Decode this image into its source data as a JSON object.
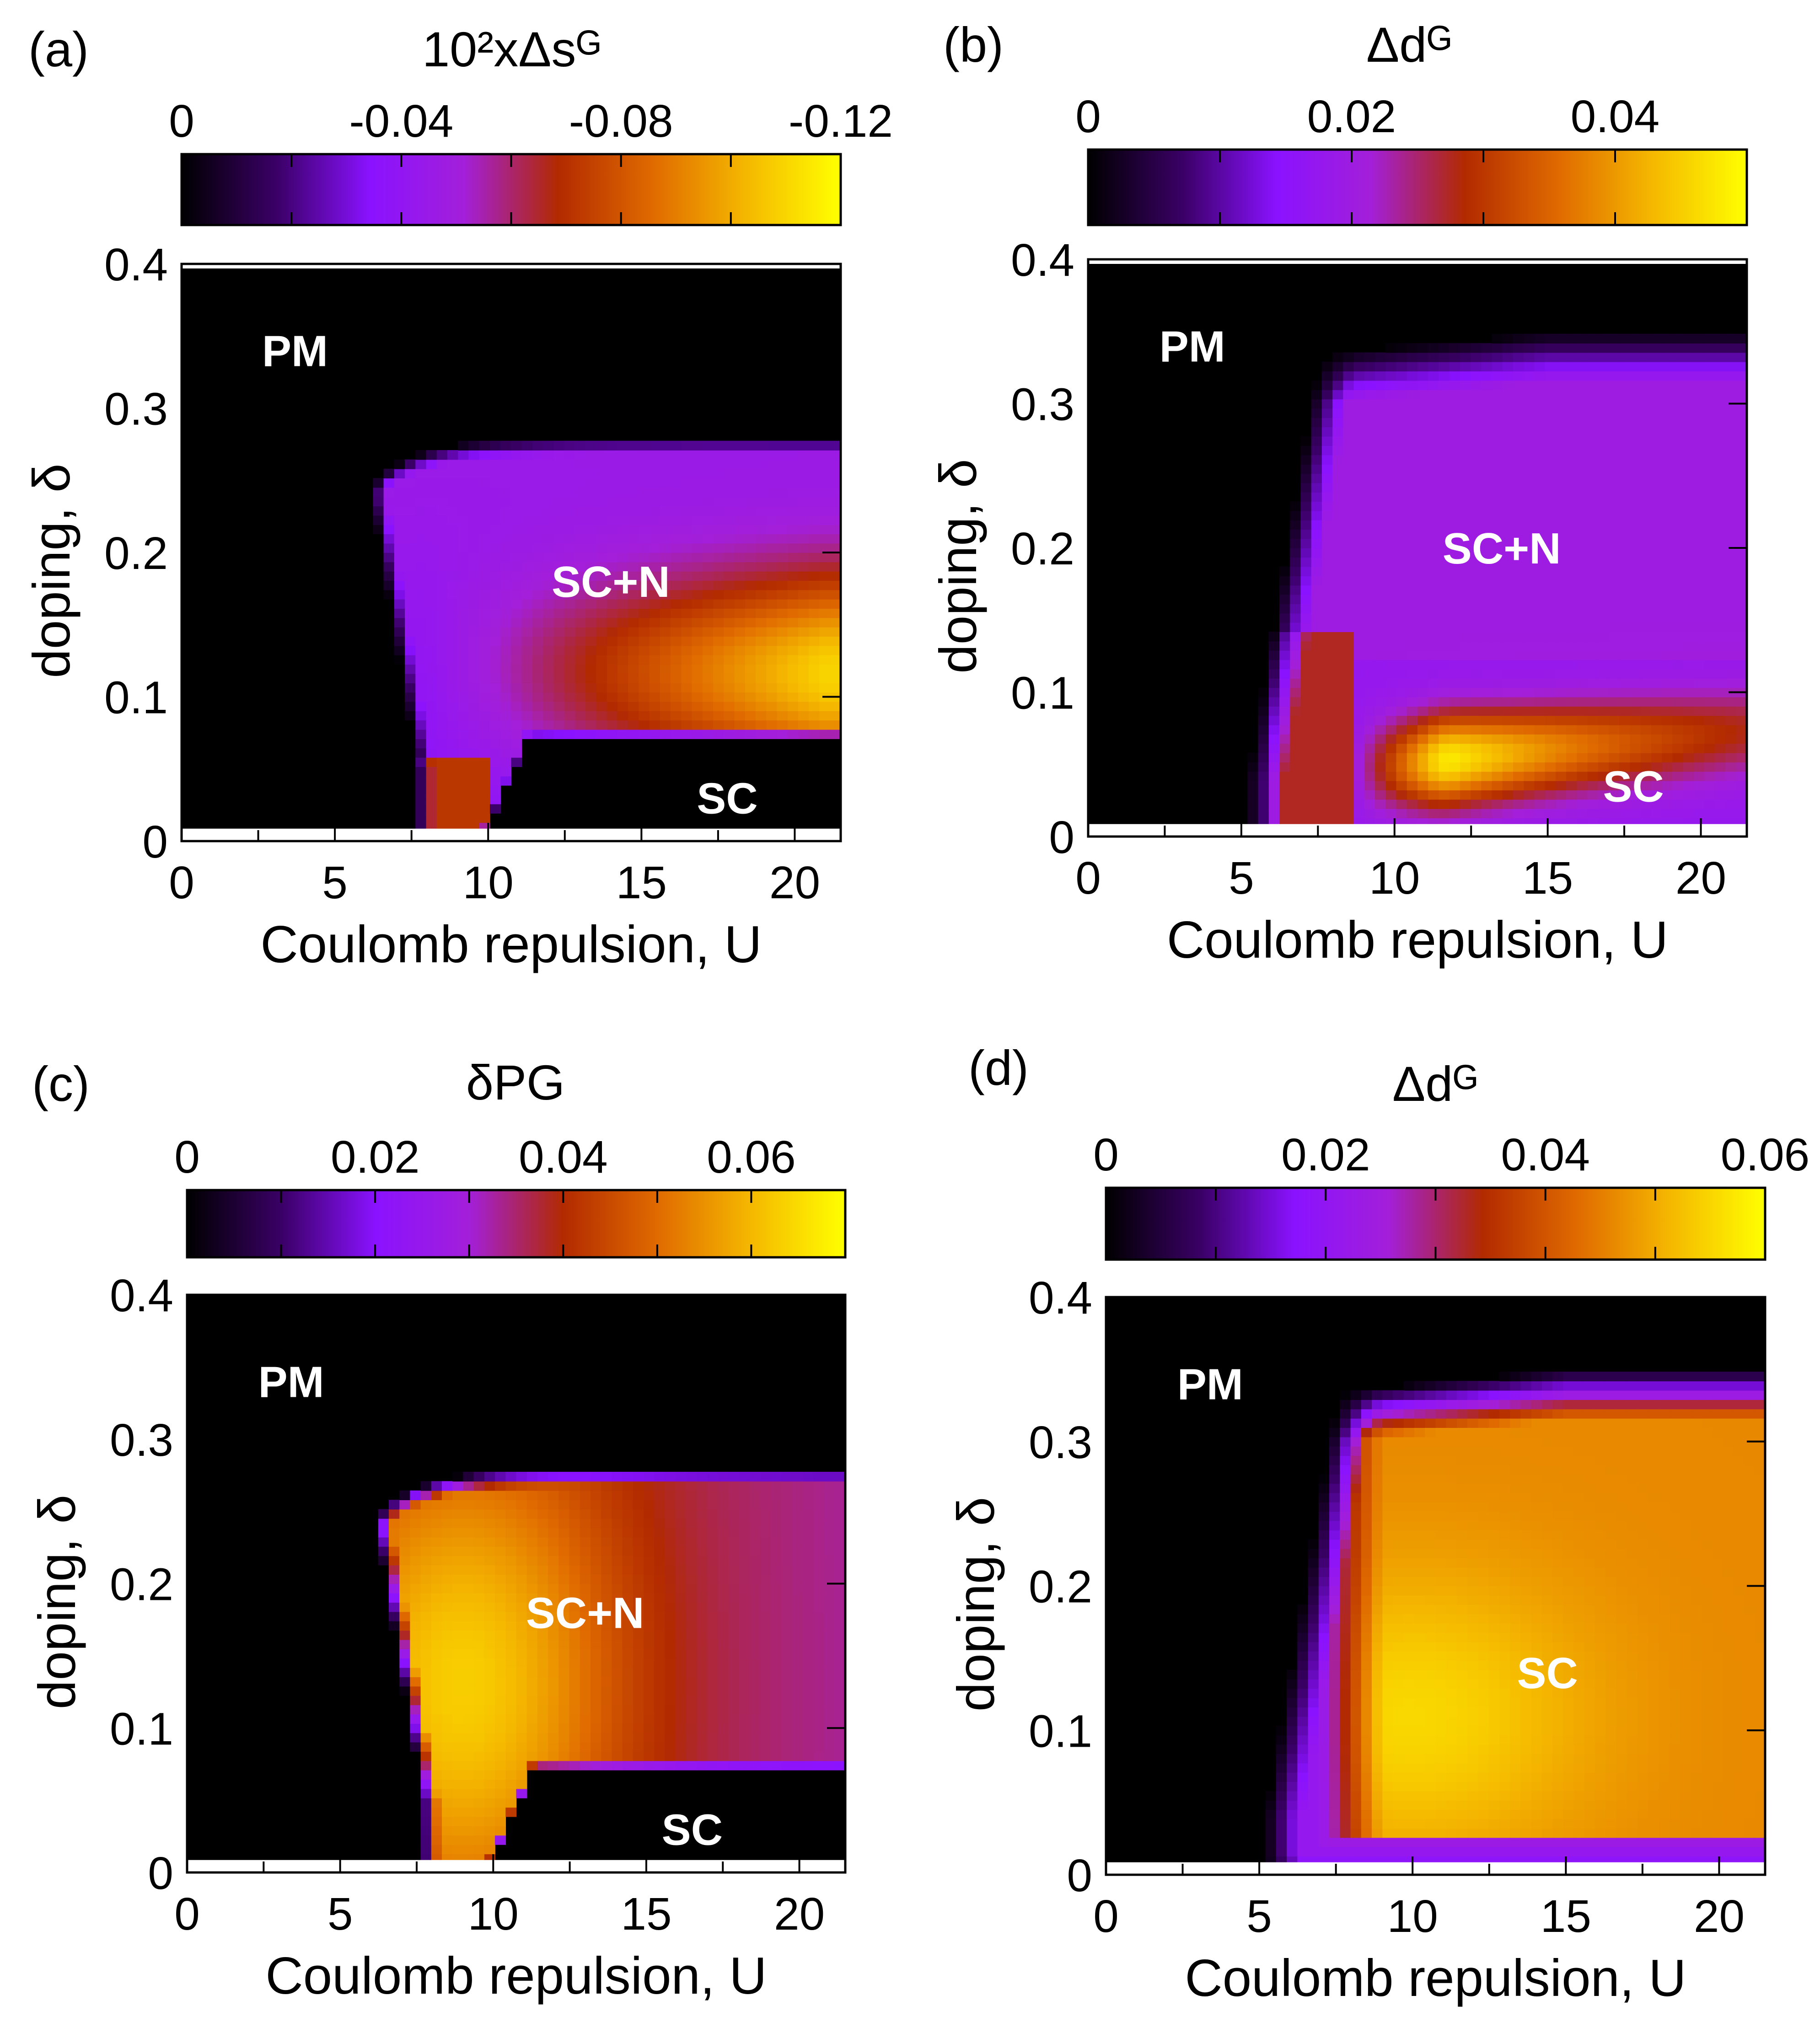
{
  "figure": {
    "colormap": [
      "#000000",
      "#3a0066",
      "#8a12ff",
      "#a31fd9",
      "#b22a00",
      "#e06a00",
      "#f5b800",
      "#ffff00"
    ]
  },
  "chart_data": [
    {
      "type": "heatmap",
      "panel": "(a)",
      "colorbar": {
        "title": "10²xΔsᴳ",
        "ticks": [
          "0",
          "-0.04",
          "-0.08",
          "-0.12"
        ],
        "range": [
          0,
          -0.12
        ]
      },
      "xlabel": "Coulomb repulsion, U",
      "ylabel": "doping, δ",
      "xticks": [
        "0",
        "5",
        "10",
        "15",
        "20"
      ],
      "yticks": [
        "0",
        "0.1",
        "0.2",
        "0.3",
        "0.4"
      ],
      "xlim": [
        0,
        21.5
      ],
      "ylim": [
        0,
        0.4
      ],
      "regions": [
        {
          "label": "PM",
          "U": 3.7,
          "delta": 0.34
        },
        {
          "label": "SC+N",
          "U": 14.0,
          "delta": 0.18
        },
        {
          "label": "SC",
          "U": 17.8,
          "delta": 0.03
        }
      ],
      "lobe": {
        "u0": 7.7,
        "upper": 0.28,
        "lower": 0.07,
        "peak_delta": 0.115,
        "peak_value": 0.88
      }
    },
    {
      "type": "heatmap",
      "panel": "(b)",
      "colorbar": {
        "title": "Δdᴳ",
        "ticks": [
          "0",
          "0.02",
          "0.04"
        ],
        "range": [
          0,
          0.05
        ]
      },
      "xlabel": "Coulomb repulsion, U",
      "ylabel": "doping, δ",
      "xticks": [
        "0",
        "5",
        "10",
        "15",
        "20"
      ],
      "yticks": [
        "0",
        "0.1",
        "0.2",
        "0.3",
        "0.4"
      ],
      "xlim": [
        0,
        21.5
      ],
      "ylim": [
        0,
        0.4
      ],
      "regions": [
        {
          "label": "PM",
          "U": 3.4,
          "delta": 0.34
        },
        {
          "label": "SC+N",
          "U": 13.5,
          "delta": 0.2
        },
        {
          "label": "SC",
          "U": 17.8,
          "delta": 0.035
        }
      ],
      "lobe": {
        "u0": 5.0,
        "upper": 0.33,
        "lower": 0.0,
        "peak_delta": 0.05,
        "peak_value": 0.97
      }
    },
    {
      "type": "heatmap",
      "panel": "(c)",
      "colorbar": {
        "title": "δPG",
        "ticks": [
          "0",
          "0.02",
          "0.04",
          "0.06"
        ],
        "range": [
          0,
          0.07
        ]
      },
      "xlabel": "Coulomb repulsion, U",
      "ylabel": "doping, δ",
      "xticks": [
        "0",
        "5",
        "10",
        "15",
        "20"
      ],
      "yticks": [
        "0",
        "0.1",
        "0.2",
        "0.3",
        "0.4"
      ],
      "xlim": [
        0,
        21.5
      ],
      "ylim": [
        0,
        0.4
      ],
      "regions": [
        {
          "label": "PM",
          "U": 3.4,
          "delta": 0.34
        },
        {
          "label": "SC+N",
          "U": 13.0,
          "delta": 0.18
        },
        {
          "label": "SC",
          "U": 16.5,
          "delta": 0.03
        }
      ],
      "lobe": {
        "u0": 7.7,
        "upper": 0.28,
        "lower": 0.07,
        "peak_delta": 0.13,
        "peak_value": 0.9
      }
    },
    {
      "type": "heatmap",
      "panel": "(d)",
      "colorbar": {
        "title": "Δdᴳ",
        "ticks": [
          "0",
          "0.02",
          "0.04",
          "0.06"
        ],
        "range": [
          0,
          0.06
        ]
      },
      "xlabel": "Coulomb repulsion, U",
      "ylabel": "doping, δ",
      "xticks": [
        "0",
        "5",
        "10",
        "15",
        "20"
      ],
      "yticks": [
        "0",
        "0.1",
        "0.2",
        "0.3",
        "0.4"
      ],
      "xlim": [
        0,
        21.5
      ],
      "ylim": [
        0,
        0.4
      ],
      "regions": [
        {
          "label": "PM",
          "U": 3.4,
          "delta": 0.34
        },
        {
          "label": "SC",
          "U": 14.4,
          "delta": 0.14
        }
      ],
      "lobe": {
        "u0": 5.0,
        "upper": 0.33,
        "lower": 0.0,
        "peak_delta": 0.11,
        "peak_value": 0.78
      }
    }
  ]
}
